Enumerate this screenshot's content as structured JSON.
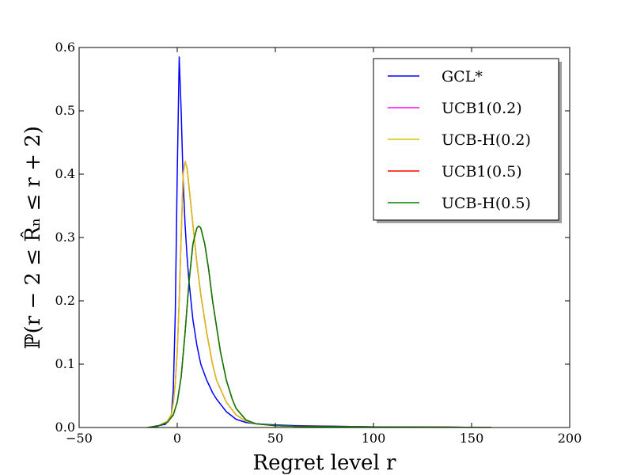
{
  "chart_data": {
    "type": "line",
    "xlabel": "Regret level r",
    "ylabel": "ℙ(r − 2 ≤ R̂ₙ ≤ r + 2)",
    "xlim": [
      -50,
      200
    ],
    "ylim": [
      0,
      0.6
    ],
    "xticks": [
      -50,
      0,
      50,
      100,
      150,
      200
    ],
    "xtick_labels": [
      "−50",
      "0",
      "50",
      "100",
      "150",
      "200"
    ],
    "yticks": [
      0,
      0.1,
      0.2,
      0.3,
      0.4,
      0.5,
      0.6
    ],
    "ytick_labels": [
      "0.0",
      "0.1",
      "0.2",
      "0.3",
      "0.4",
      "0.5",
      "0.6"
    ],
    "grid": false,
    "legend_position": "top-right",
    "series": [
      {
        "name": "GCL*",
        "color": "#0000ff",
        "x": [
          -15,
          -6,
          -3,
          -2,
          -1,
          0,
          1,
          2,
          3,
          4,
          5,
          6,
          7,
          8,
          10,
          12,
          15,
          18,
          20,
          25,
          30,
          35,
          40,
          50,
          60,
          80,
          100,
          120,
          140,
          160
        ],
        "y": [
          0,
          0.005,
          0.02,
          0.06,
          0.18,
          0.4,
          0.585,
          0.5,
          0.39,
          0.32,
          0.27,
          0.23,
          0.2,
          0.17,
          0.13,
          0.1,
          0.075,
          0.055,
          0.045,
          0.025,
          0.013,
          0.008,
          0.006,
          0.004,
          0.003,
          0.002,
          0.001,
          0.0008,
          0.0004,
          0
        ]
      },
      {
        "name": "UCB1(0.2)",
        "color": "#ff00ff",
        "x": [
          -15,
          -10,
          -5,
          -3,
          -2,
          -1,
          0,
          1,
          2,
          3,
          4,
          5,
          6,
          8,
          10,
          12,
          15,
          18,
          20,
          25,
          30,
          35,
          40,
          50,
          60,
          80,
          100,
          120,
          140,
          160
        ],
        "y": [
          0,
          0.002,
          0.01,
          0.02,
          0.04,
          0.07,
          0.12,
          0.2,
          0.3,
          0.4,
          0.42,
          0.41,
          0.38,
          0.32,
          0.26,
          0.21,
          0.15,
          0.1,
          0.075,
          0.04,
          0.02,
          0.01,
          0.006,
          0.003,
          0.002,
          0.0015,
          0.001,
          0.0008,
          0.0004,
          0
        ]
      },
      {
        "name": "UCB-H(0.2)",
        "color": "#d6c200",
        "x": [
          -15,
          -10,
          -5,
          -3,
          -2,
          -1,
          0,
          1,
          2,
          3,
          4,
          5,
          6,
          8,
          10,
          12,
          15,
          18,
          20,
          25,
          30,
          35,
          40,
          50,
          60,
          80,
          100,
          120,
          140,
          160
        ],
        "y": [
          0,
          0.002,
          0.01,
          0.02,
          0.04,
          0.07,
          0.12,
          0.2,
          0.3,
          0.4,
          0.42,
          0.41,
          0.38,
          0.32,
          0.26,
          0.21,
          0.15,
          0.1,
          0.075,
          0.04,
          0.02,
          0.01,
          0.006,
          0.003,
          0.002,
          0.0015,
          0.001,
          0.0008,
          0.0004,
          0
        ]
      },
      {
        "name": "UCB1(0.5)",
        "color": "#ff0000",
        "x": [
          -15,
          -10,
          -5,
          -2,
          0,
          2,
          4,
          6,
          8,
          10,
          11,
          12,
          14,
          16,
          18,
          20,
          22,
          25,
          28,
          30,
          35,
          40,
          50,
          60,
          80,
          100,
          120,
          140,
          160
        ],
        "y": [
          0,
          0.002,
          0.008,
          0.02,
          0.04,
          0.08,
          0.15,
          0.23,
          0.29,
          0.315,
          0.318,
          0.315,
          0.29,
          0.25,
          0.2,
          0.16,
          0.12,
          0.075,
          0.045,
          0.03,
          0.012,
          0.006,
          0.003,
          0.002,
          0.0015,
          0.001,
          0.0008,
          0.0004,
          0
        ]
      },
      {
        "name": "UCB-H(0.5)",
        "color": "#007f00",
        "x": [
          -15,
          -10,
          -5,
          -2,
          0,
          2,
          4,
          6,
          8,
          10,
          11,
          12,
          14,
          16,
          18,
          20,
          22,
          25,
          28,
          30,
          35,
          40,
          50,
          60,
          80,
          100,
          120,
          140,
          160
        ],
        "y": [
          0,
          0.002,
          0.008,
          0.02,
          0.04,
          0.08,
          0.15,
          0.23,
          0.29,
          0.315,
          0.318,
          0.315,
          0.29,
          0.25,
          0.2,
          0.16,
          0.12,
          0.075,
          0.045,
          0.03,
          0.012,
          0.006,
          0.003,
          0.002,
          0.0015,
          0.001,
          0.0008,
          0.0004,
          0
        ]
      }
    ]
  }
}
